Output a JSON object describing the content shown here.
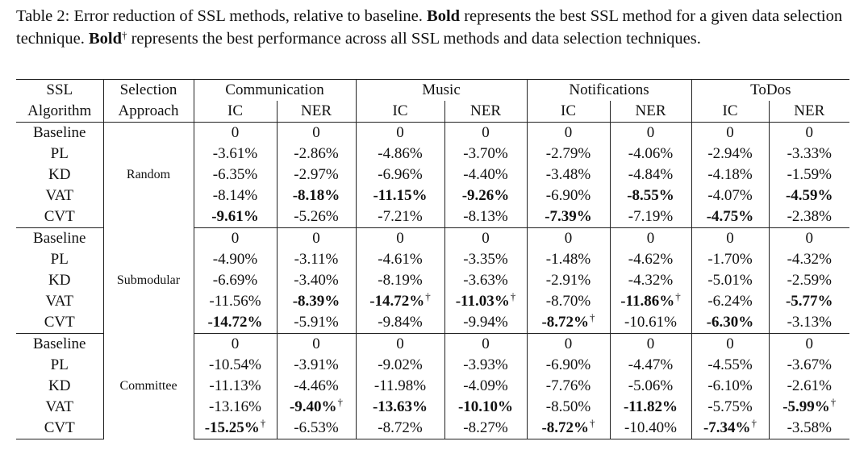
{
  "caption": {
    "lead": "Table 2:",
    "text1": " Error reduction of SSL methods, relative to baseline. ",
    "bold1": "Bold",
    "text2": " represents the best SSL method for a given data selection technique. ",
    "bold2": "Bold",
    "dagger": "†",
    "text3": " represents the best performance across all SSL methods and data selection techniques."
  },
  "header": {
    "ssl": "SSL",
    "algorithm": "Algorithm",
    "selection": "Selection",
    "approach": "Approach",
    "domains": [
      "Communication",
      "Music",
      "Notifications",
      "ToDos"
    ],
    "metrics": [
      "IC",
      "NER",
      "IC",
      "NER",
      "IC",
      "NER",
      "IC",
      "NER"
    ]
  },
  "groups": [
    {
      "approach": "Random",
      "rows": [
        {
          "algo": "Baseline",
          "cells": [
            {
              "v": "0"
            },
            {
              "v": "0"
            },
            {
              "v": "0"
            },
            {
              "v": "0"
            },
            {
              "v": "0"
            },
            {
              "v": "0"
            },
            {
              "v": "0"
            },
            {
              "v": "0"
            }
          ]
        },
        {
          "algo": "PL",
          "cells": [
            {
              "v": "-3.61%"
            },
            {
              "v": "-2.86%"
            },
            {
              "v": "-4.86%"
            },
            {
              "v": "-3.70%"
            },
            {
              "v": "-2.79%"
            },
            {
              "v": "-4.06%"
            },
            {
              "v": "-2.94%"
            },
            {
              "v": "-3.33%"
            }
          ]
        },
        {
          "algo": "KD",
          "cells": [
            {
              "v": "-6.35%"
            },
            {
              "v": "-2.97%"
            },
            {
              "v": "-6.96%"
            },
            {
              "v": "-4.40%"
            },
            {
              "v": "-3.48%"
            },
            {
              "v": "-4.84%"
            },
            {
              "v": "-4.18%"
            },
            {
              "v": "-1.59%"
            }
          ]
        },
        {
          "algo": "VAT",
          "cells": [
            {
              "v": "-8.14%"
            },
            {
              "v": "-8.18%",
              "b": true
            },
            {
              "v": "-11.15%",
              "b": true
            },
            {
              "v": "-9.26%",
              "b": true
            },
            {
              "v": "-6.90%"
            },
            {
              "v": "-8.55%",
              "b": true
            },
            {
              "v": "-4.07%"
            },
            {
              "v": "-4.59%",
              "b": true
            }
          ]
        },
        {
          "algo": "CVT",
          "cells": [
            {
              "v": "-9.61%",
              "b": true
            },
            {
              "v": "-5.26%"
            },
            {
              "v": "-7.21%"
            },
            {
              "v": "-8.13%"
            },
            {
              "v": "-7.39%",
              "b": true
            },
            {
              "v": "-7.19%"
            },
            {
              "v": "-4.75%",
              "b": true
            },
            {
              "v": "-2.38%"
            }
          ]
        }
      ]
    },
    {
      "approach": "Submodular",
      "rows": [
        {
          "algo": "Baseline",
          "cells": [
            {
              "v": "0"
            },
            {
              "v": "0"
            },
            {
              "v": "0"
            },
            {
              "v": "0"
            },
            {
              "v": "0"
            },
            {
              "v": "0"
            },
            {
              "v": "0"
            },
            {
              "v": "0"
            }
          ]
        },
        {
          "algo": "PL",
          "cells": [
            {
              "v": "-4.90%"
            },
            {
              "v": "-3.11%"
            },
            {
              "v": "-4.61%"
            },
            {
              "v": "-3.35%"
            },
            {
              "v": "-1.48%"
            },
            {
              "v": "-4.62%"
            },
            {
              "v": "-1.70%"
            },
            {
              "v": "-4.32%"
            }
          ]
        },
        {
          "algo": "KD",
          "cells": [
            {
              "v": "-6.69%"
            },
            {
              "v": "-3.40%"
            },
            {
              "v": "-8.19%"
            },
            {
              "v": "-3.63%"
            },
            {
              "v": "-2.91%"
            },
            {
              "v": "-4.32%"
            },
            {
              "v": "-5.01%"
            },
            {
              "v": "-2.59%"
            }
          ]
        },
        {
          "algo": "VAT",
          "cells": [
            {
              "v": "-11.56%"
            },
            {
              "v": "-8.39%",
              "b": true
            },
            {
              "v": "-14.72%",
              "b": true,
              "d": "†"
            },
            {
              "v": "-11.03%",
              "b": true,
              "d": "†"
            },
            {
              "v": "-8.70%"
            },
            {
              "v": "-11.86%",
              "b": true,
              "d": "†"
            },
            {
              "v": "-6.24%"
            },
            {
              "v": "-5.77%",
              "b": true
            }
          ]
        },
        {
          "algo": "CVT",
          "cells": [
            {
              "v": "-14.72%",
              "b": true
            },
            {
              "v": "-5.91%"
            },
            {
              "v": "-9.84%"
            },
            {
              "v": "-9.94%"
            },
            {
              "v": "-8.72%",
              "b": true,
              "d": "†"
            },
            {
              "v": "-10.61%"
            },
            {
              "v": "-6.30%",
              "b": true
            },
            {
              "v": "-3.13%"
            }
          ]
        }
      ]
    },
    {
      "approach": "Committee",
      "rows": [
        {
          "algo": "Baseline",
          "cells": [
            {
              "v": "0"
            },
            {
              "v": "0"
            },
            {
              "v": "0"
            },
            {
              "v": "0"
            },
            {
              "v": "0"
            },
            {
              "v": "0"
            },
            {
              "v": "0"
            },
            {
              "v": "0"
            }
          ]
        },
        {
          "algo": "PL",
          "cells": [
            {
              "v": "-10.54%"
            },
            {
              "v": "-3.91%"
            },
            {
              "v": "-9.02%"
            },
            {
              "v": "-3.93%"
            },
            {
              "v": "-6.90%"
            },
            {
              "v": "-4.47%"
            },
            {
              "v": "-4.55%"
            },
            {
              "v": "-3.67%"
            }
          ]
        },
        {
          "algo": "KD",
          "cells": [
            {
              "v": "-11.13%"
            },
            {
              "v": "-4.46%"
            },
            {
              "v": "-11.98%"
            },
            {
              "v": "-4.09%"
            },
            {
              "v": "-7.76%"
            },
            {
              "v": "-5.06%"
            },
            {
              "v": "-6.10%"
            },
            {
              "v": "-2.61%"
            }
          ]
        },
        {
          "algo": "VAT",
          "cells": [
            {
              "v": "-13.16%"
            },
            {
              "v": "-9.40%",
              "b": true,
              "d": "†"
            },
            {
              "v": "-13.63%",
              "b": true
            },
            {
              "v": "-10.10%",
              "b": true
            },
            {
              "v": "-8.50%"
            },
            {
              "v": "-11.82%",
              "b": true
            },
            {
              "v": "-5.75%"
            },
            {
              "v": "-5.99%",
              "b": true,
              "d": "†"
            }
          ]
        },
        {
          "algo": "CVT",
          "cells": [
            {
              "v": "-15.25%",
              "b": true,
              "d": "†"
            },
            {
              "v": "-6.53%"
            },
            {
              "v": "-8.72%"
            },
            {
              "v": "-8.27%"
            },
            {
              "v": "-8.72%",
              "b": true,
              "d": "†"
            },
            {
              "v": "-10.40%"
            },
            {
              "v": "-7.34%",
              "b": true,
              "d": "†"
            },
            {
              "v": "-3.58%"
            }
          ]
        }
      ]
    }
  ]
}
